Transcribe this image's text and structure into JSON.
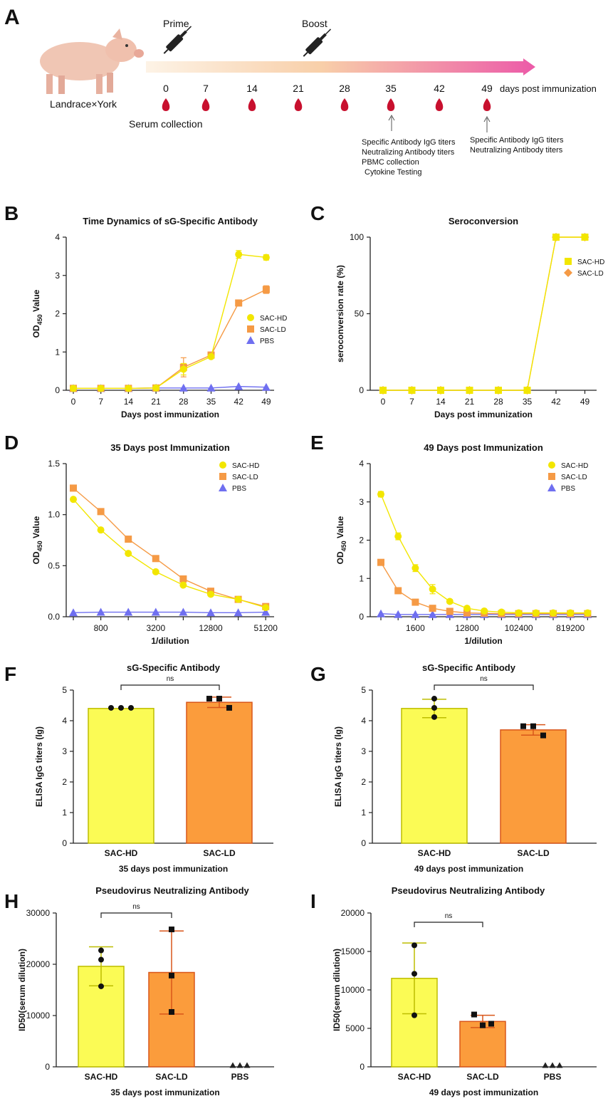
{
  "colors": {
    "hd": "#f2e600",
    "ld": "#f59a45",
    "pbs": "#6f6ff0",
    "hd_fill": "#fbfb55",
    "ld_fill": "#fb9c3c",
    "hd_edge": "#bdbd00",
    "ld_edge": "#d9561a"
  },
  "schematic": {
    "label": "A",
    "prime": "Prime",
    "boost": "Boost",
    "pig_label": "Landrace×York",
    "days": [
      "0",
      "7",
      "14",
      "21",
      "28",
      "35",
      "42",
      "49"
    ],
    "days_label": "days post immunization",
    "serum": "Serum collection",
    "note35": [
      "Specific Antibody IgG titers",
      "Neutralizing Antibody titers",
      "PBMC collection",
      "Cytokine Testing"
    ],
    "note49": [
      "Specific Antibody IgG titers",
      "Neutralizing Antibody titers"
    ],
    "icons": [
      "pig-icon",
      "syringe-icon",
      "blood-drop-icon",
      "arrow-up-icon"
    ]
  },
  "chart_data": [
    {
      "id": "B",
      "type": "line",
      "title": "Time Dynamics of sG-Specific Antibody",
      "xlabel": "Days post immunization",
      "ylabel": "OD450 Value",
      "categories": [
        "0",
        "7",
        "14",
        "21",
        "28",
        "35",
        "42",
        "49"
      ],
      "ylim": [
        0,
        4
      ],
      "yticks": [
        "0",
        "1",
        "2",
        "3",
        "4"
      ],
      "series": [
        {
          "name": "SAC-HD",
          "marker": "circle",
          "values": [
            0.05,
            0.05,
            0.05,
            0.06,
            0.55,
            0.88,
            3.55,
            3.47
          ],
          "err": [
            0,
            0,
            0,
            0,
            0.15,
            0.04,
            0.1,
            0.07
          ]
        },
        {
          "name": "SAC-LD",
          "marker": "square",
          "values": [
            0.05,
            0.05,
            0.05,
            0.06,
            0.6,
            0.92,
            2.28,
            2.63
          ],
          "err": [
            0,
            0,
            0,
            0,
            0.25,
            0.04,
            0.06,
            0.1
          ]
        },
        {
          "name": "PBS",
          "marker": "triangle",
          "values": [
            0.05,
            0.05,
            0.05,
            0.06,
            0.06,
            0.06,
            0.1,
            0.08
          ],
          "err": [
            0,
            0,
            0,
            0,
            0,
            0,
            0,
            0
          ]
        }
      ]
    },
    {
      "id": "C",
      "type": "line",
      "title": "Seroconversion",
      "xlabel": "Days post immunization",
      "ylabel": "seroconversion rate (%)",
      "categories": [
        "0",
        "7",
        "14",
        "21",
        "28",
        "35",
        "42",
        "49"
      ],
      "ylim": [
        0,
        100
      ],
      "yticks": [
        "0",
        "50",
        "100"
      ],
      "series": [
        {
          "name": "SAC-HD",
          "marker": "square",
          "values": [
            0,
            0,
            0,
            0,
            0,
            0,
            100,
            100
          ]
        },
        {
          "name": "SAC-LD",
          "marker": "diamond",
          "values": [
            0,
            0,
            0,
            0,
            0,
            0,
            100,
            100
          ]
        }
      ]
    },
    {
      "id": "D",
      "type": "line",
      "title": "35 Days post Immunization",
      "xlabel": "1/dilution",
      "ylabel": "OD450 Value",
      "x": [
        "400",
        "800",
        "1600",
        "3200",
        "6400",
        "12800",
        "25600",
        "51200"
      ],
      "xticks": [
        "800",
        "3200",
        "12800",
        "51200"
      ],
      "ylim": [
        0,
        1.5
      ],
      "yticks": [
        "0.0",
        "0.5",
        "1.0",
        "1.5"
      ],
      "series": [
        {
          "name": "SAC-HD",
          "marker": "circle",
          "values": [
            1.15,
            0.85,
            0.62,
            0.44,
            0.31,
            0.22,
            0.17,
            0.09
          ]
        },
        {
          "name": "SAC-LD",
          "marker": "square",
          "values": [
            1.26,
            1.03,
            0.76,
            0.57,
            0.37,
            0.25,
            0.17,
            0.1
          ]
        },
        {
          "name": "PBS",
          "marker": "triangle",
          "values": [
            0.04,
            0.045,
            0.045,
            0.045,
            0.045,
            0.04,
            0.04,
            0.045
          ]
        }
      ]
    },
    {
      "id": "E",
      "type": "line",
      "title": "49 Days post Immunization",
      "xlabel": "1/dilution",
      "ylabel": "OD450 Value",
      "x": [
        "400",
        "800",
        "1600",
        "3200",
        "6400",
        "12800",
        "25600",
        "51200",
        "102400",
        "204800",
        "409600",
        "819200",
        "1638400"
      ],
      "xticks": [
        "1600",
        "12800",
        "102400",
        "819200"
      ],
      "ylim": [
        0,
        4
      ],
      "yticks": [
        "0",
        "1",
        "2",
        "3",
        "4"
      ],
      "series": [
        {
          "name": "SAC-HD",
          "marker": "circle",
          "values": [
            3.2,
            2.1,
            1.27,
            0.72,
            0.4,
            0.22,
            0.15,
            0.12,
            0.1,
            0.1,
            0.1,
            0.1,
            0.1
          ],
          "err": [
            0.07,
            0.09,
            0.09,
            0.12,
            0.05,
            0.02,
            0,
            0,
            0,
            0,
            0,
            0,
            0
          ]
        },
        {
          "name": "SAC-LD",
          "marker": "square",
          "values": [
            1.42,
            0.68,
            0.38,
            0.22,
            0.14,
            0.1,
            0.09,
            0.08,
            0.08,
            0.08,
            0.08,
            0.08,
            0.08
          ]
        },
        {
          "name": "PBS",
          "marker": "triangle",
          "values": [
            0.08,
            0.06,
            0.06,
            0.06,
            0.06,
            0.06,
            0.06,
            0.06,
            0.06,
            0.06,
            0.06,
            0.06,
            0.06
          ]
        }
      ]
    },
    {
      "id": "F",
      "type": "bar",
      "title": "sG-Specific Antibody",
      "xlabel": "35 days post immunization",
      "ylabel": "ELISA IgG titers (lg)",
      "categories": [
        "SAC-HD",
        "SAC-LD"
      ],
      "values": [
        4.4,
        4.6
      ],
      "err": [
        0,
        0.17
      ],
      "points": [
        [
          4.42,
          4.42,
          4.42
        ],
        [
          4.72,
          4.72,
          4.42
        ]
      ],
      "ylim": [
        0,
        5
      ],
      "yticks": [
        "0",
        "1",
        "2",
        "3",
        "4",
        "5"
      ],
      "sig": "ns"
    },
    {
      "id": "G",
      "type": "bar",
      "title": "sG-Specific Antibody",
      "xlabel": "49 days post immunization",
      "ylabel": "ELISA IgG titers (lg)",
      "categories": [
        "SAC-HD",
        "SAC-LD"
      ],
      "values": [
        4.4,
        3.7
      ],
      "err": [
        0.3,
        0.17
      ],
      "points": [
        [
          4.72,
          4.42,
          4.12
        ],
        [
          3.82,
          3.82,
          3.52
        ]
      ],
      "ylim": [
        0,
        5
      ],
      "yticks": [
        "0",
        "1",
        "2",
        "3",
        "4",
        "5"
      ],
      "sig": "ns"
    },
    {
      "id": "H",
      "type": "bar",
      "title": "Pseudovirus Neutralizing Antibody",
      "xlabel": "35 days post immunization",
      "ylabel": "ID50(serum dilution)",
      "categories": [
        "SAC-HD",
        "SAC-LD",
        "PBS"
      ],
      "values": [
        19600,
        18400,
        0
      ],
      "err": [
        3800,
        8100,
        0
      ],
      "points": [
        [
          22700,
          20900,
          15700
        ],
        [
          26800,
          17800,
          10700
        ],
        [
          0,
          0,
          0
        ]
      ],
      "ylim": [
        0,
        30000
      ],
      "yticks": [
        "0",
        "10000",
        "20000",
        "30000"
      ],
      "sig": "ns"
    },
    {
      "id": "I",
      "type": "bar",
      "title": "Pseudovirus Neutralizing Antibody",
      "xlabel": "49 days post immunization",
      "ylabel": "ID50(serum dilution)",
      "categories": [
        "SAC-HD",
        "SAC-LD",
        "PBS"
      ],
      "values": [
        11500,
        5900,
        0
      ],
      "err": [
        4600,
        800,
        0
      ],
      "points": [
        [
          15800,
          12100,
          6700
        ],
        [
          6800,
          5400,
          5600
        ],
        [
          0,
          0,
          0
        ]
      ],
      "ylim": [
        0,
        20000
      ],
      "yticks": [
        "0",
        "5000",
        "10000",
        "15000",
        "20000"
      ],
      "sig": "ns"
    }
  ]
}
